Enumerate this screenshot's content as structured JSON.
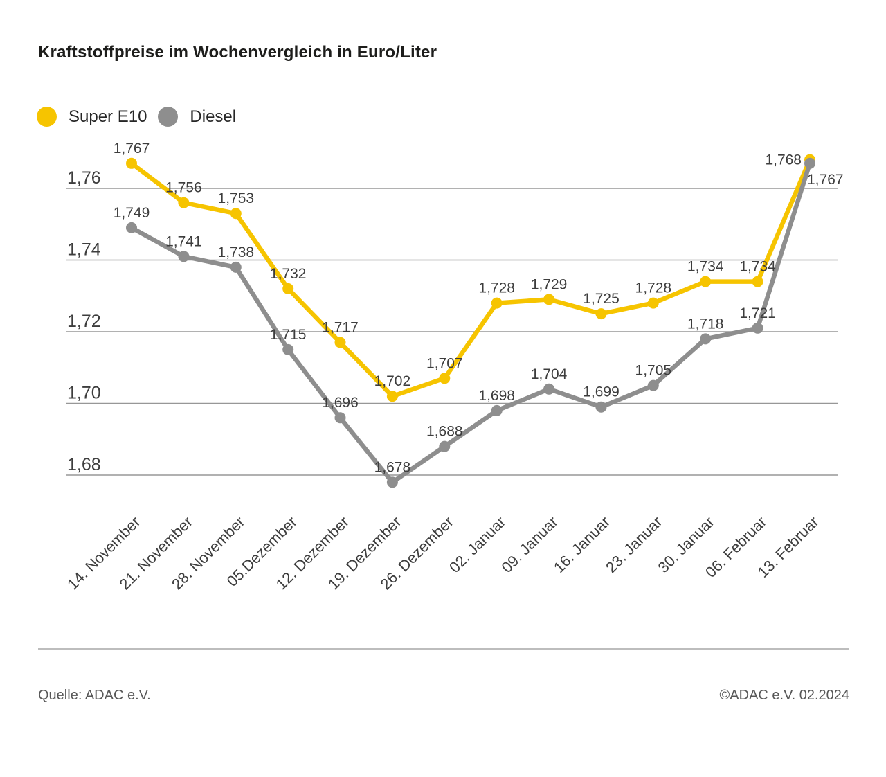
{
  "title": "Kraftstoffpreise im Wochenvergleich in Euro/Liter",
  "legend": {
    "items": [
      {
        "label": "Super E10",
        "color": "#F6C400"
      },
      {
        "label": "Diesel",
        "color": "#8E8E8E"
      }
    ]
  },
  "footer": {
    "source": "Quelle: ADAC e.V.",
    "copyright": "©ADAC e.V. 02.2024"
  },
  "colors": {
    "super_e10": "#F6C400",
    "diesel": "#8E8E8E",
    "gridline": "#979797",
    "axis_text": "#3d3d3d"
  },
  "chart_data": {
    "type": "line",
    "title": "Kraftstoffpreise im Wochenvergleich in Euro/Liter",
    "unit": "Euro/Liter",
    "categories": [
      "14. November",
      "21. November",
      "28. November",
      "05.Dezember",
      "12. Dezember",
      "19. Dezember",
      "26. Dezember",
      "02. Januar",
      "09. Januar",
      "16. Januar",
      "23. Januar",
      "30. Januar",
      "06. Februar",
      "13. Februar"
    ],
    "series": [
      {
        "name": "Super E10",
        "color": "#F6C400",
        "values": [
          1.767,
          1.756,
          1.753,
          1.732,
          1.717,
          1.702,
          1.707,
          1.728,
          1.729,
          1.725,
          1.728,
          1.734,
          1.734,
          1.768
        ]
      },
      {
        "name": "Diesel",
        "color": "#8E8E8E",
        "values": [
          1.749,
          1.741,
          1.738,
          1.715,
          1.696,
          1.678,
          1.688,
          1.698,
          1.704,
          1.699,
          1.705,
          1.718,
          1.721,
          1.767
        ]
      }
    ],
    "y_ticks": [
      1.76,
      1.74,
      1.72,
      1.7,
      1.68
    ],
    "ylim": [
      1.672,
      1.776
    ],
    "grid": true,
    "legend_position": "top",
    "point_labels": true,
    "decimal_separator": ","
  }
}
